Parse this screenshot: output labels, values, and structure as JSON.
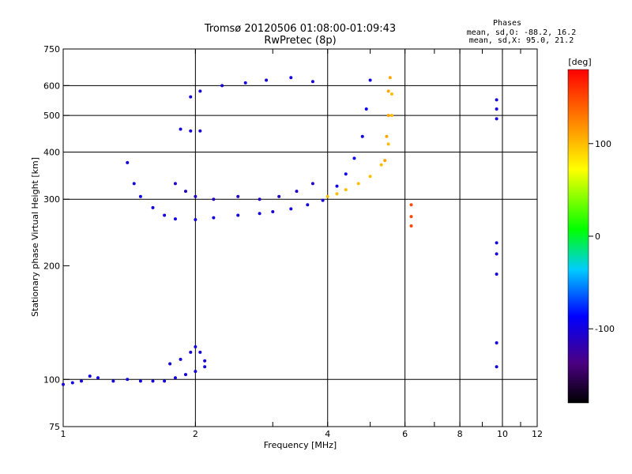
{
  "chart_data": {
    "type": "scatter",
    "title": "Tromsø 20120506 01:08:00-01:09:43",
    "subtitle": "RwPretec (8p)",
    "xlabel": "Frequency [MHz]",
    "ylabel": "Stationary phase Virtual Height [km]",
    "x_scale": "log",
    "y_scale": "log",
    "xlim": [
      1,
      12
    ],
    "ylim": [
      75,
      750
    ],
    "x_ticks": [
      1,
      2,
      4,
      6,
      8,
      10,
      12
    ],
    "x_grid": [
      2,
      4,
      6,
      8,
      10
    ],
    "y_ticks": [
      75,
      100,
      200,
      300,
      400,
      500,
      600,
      750
    ],
    "y_grid": [
      100,
      300,
      400,
      500,
      600
    ],
    "grid": true,
    "phases": {
      "heading": "Phases",
      "line1": "mean, sd,O: -88.2, 16.2",
      "line2": "mean, sd,X:  95.0, 21.2"
    },
    "colorbar": {
      "label": "[deg]",
      "min": -180,
      "max": 180,
      "ticks": [
        100,
        0,
        -100
      ]
    },
    "traces": [
      {
        "phase": -100,
        "points": [
          [
            1.0,
            97
          ],
          [
            1.05,
            98
          ],
          [
            1.1,
            99
          ],
          [
            1.15,
            102
          ],
          [
            1.2,
            101
          ],
          [
            1.3,
            99
          ],
          [
            1.4,
            100
          ],
          [
            1.5,
            99
          ],
          [
            1.6,
            99
          ],
          [
            1.7,
            99
          ],
          [
            1.8,
            101
          ],
          [
            1.9,
            103
          ],
          [
            2.0,
            105
          ],
          [
            2.1,
            108
          ]
        ]
      },
      {
        "phase": -100,
        "points": [
          [
            1.75,
            110
          ],
          [
            1.85,
            113
          ],
          [
            1.95,
            118
          ],
          [
            2.0,
            122
          ],
          [
            2.05,
            118
          ],
          [
            2.1,
            112
          ]
        ]
      },
      {
        "phase": -100,
        "points": [
          [
            1.4,
            375
          ],
          [
            1.45,
            330
          ],
          [
            1.5,
            305
          ],
          [
            1.6,
            285
          ],
          [
            1.7,
            272
          ],
          [
            1.8,
            266
          ],
          [
            2.0,
            265
          ],
          [
            2.2,
            268
          ],
          [
            2.5,
            272
          ],
          [
            2.8,
            275
          ],
          [
            3.0,
            278
          ],
          [
            3.3,
            283
          ],
          [
            3.6,
            290
          ],
          [
            3.9,
            298
          ]
        ]
      },
      {
        "phase": -110,
        "points": [
          [
            1.8,
            330
          ],
          [
            1.9,
            315
          ],
          [
            2.0,
            305
          ],
          [
            2.2,
            300
          ],
          [
            2.5,
            305
          ],
          [
            2.8,
            300
          ],
          [
            3.1,
            305
          ],
          [
            3.4,
            315
          ],
          [
            3.7,
            330
          ]
        ]
      },
      {
        "phase": -95,
        "points": [
          [
            4.2,
            325
          ],
          [
            4.4,
            350
          ],
          [
            4.6,
            385
          ],
          [
            4.8,
            440
          ],
          [
            4.9,
            520
          ],
          [
            5.0,
            620
          ]
        ]
      },
      {
        "phase": 100,
        "points": [
          [
            4.0,
            305
          ],
          [
            4.2,
            310
          ],
          [
            4.4,
            318
          ],
          [
            4.7,
            330
          ],
          [
            5.0,
            345
          ],
          [
            5.3,
            370
          ],
          [
            5.5,
            420
          ],
          [
            5.6,
            500
          ],
          [
            5.6,
            570
          ]
        ]
      },
      {
        "phase": 110,
        "points": [
          [
            5.4,
            380
          ],
          [
            5.45,
            440
          ],
          [
            5.5,
            500
          ],
          [
            5.5,
            580
          ],
          [
            5.55,
            630
          ]
        ]
      },
      {
        "phase": -100,
        "points": [
          [
            1.95,
            560
          ],
          [
            2.05,
            580
          ],
          [
            2.3,
            600
          ],
          [
            2.6,
            610
          ],
          [
            2.9,
            620
          ],
          [
            3.3,
            630
          ],
          [
            3.7,
            615
          ]
        ]
      },
      {
        "phase": -100,
        "points": [
          [
            1.85,
            460
          ],
          [
            1.95,
            455
          ],
          [
            2.05,
            455
          ]
        ]
      },
      {
        "phase": -100,
        "points": [
          [
            9.7,
            230
          ],
          [
            9.7,
            215
          ],
          [
            9.7,
            190
          ],
          [
            9.7,
            125
          ],
          [
            9.7,
            108
          ]
        ]
      },
      {
        "phase": -100,
        "points": [
          [
            9.7,
            550
          ],
          [
            9.7,
            520
          ],
          [
            9.7,
            490
          ]
        ]
      },
      {
        "phase": 150,
        "points": [
          [
            6.2,
            290
          ],
          [
            6.2,
            270
          ],
          [
            6.2,
            255
          ]
        ]
      }
    ]
  }
}
